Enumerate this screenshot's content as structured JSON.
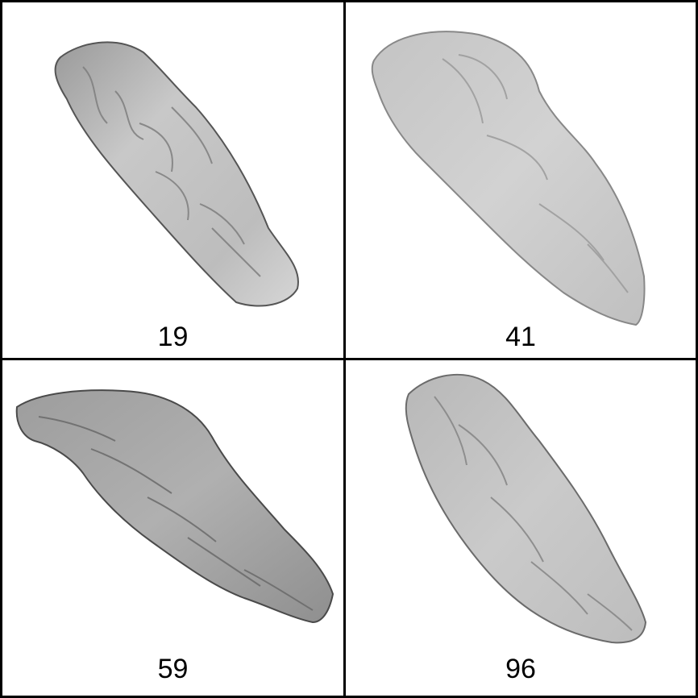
{
  "panels": [
    {
      "label": "19",
      "shade": "#bdbdbd",
      "edge": "#5a5a5a"
    },
    {
      "label": "41",
      "shade": "#cfcfcf",
      "edge": "#8a8a8a"
    },
    {
      "label": "59",
      "shade": "#a9a9a9",
      "edge": "#4a4a4a"
    },
    {
      "label": "96",
      "shade": "#c6c6c6",
      "edge": "#6e6e6e"
    }
  ]
}
